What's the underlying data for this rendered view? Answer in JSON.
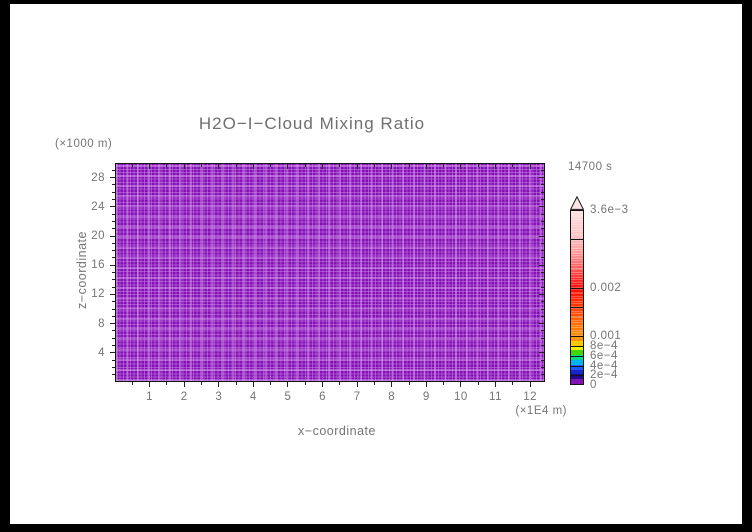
{
  "title": "H2O−I−Cloud Mixing Ratio",
  "annotations": {
    "time_label": "14700 s",
    "z_axis_unit": "(×1000 m)",
    "x_axis_unit": "(×1E4 m)"
  },
  "axes": {
    "xlabel": "x−coordinate",
    "ylabel": "z−coordinate"
  },
  "colors": {
    "frame": "#000000",
    "canvas": "#ffffff",
    "text": "#757575",
    "field_purple": "#8411b3",
    "mesh_line": "#ce92eb",
    "axis_tick": "#232323"
  },
  "chart_data": {
    "type": "heatmap",
    "title": "H2O−I−Cloud Mixing Ratio",
    "annotation_time": "14700 s",
    "x": {
      "label": "x−coordinate",
      "unit": "(×1E4 m)",
      "ticks": [
        1,
        2,
        3,
        4,
        5,
        6,
        7,
        8,
        9,
        10,
        11,
        12
      ],
      "minor_tick_step": 0.5,
      "range": [
        0,
        12.43
      ]
    },
    "z": {
      "label": "z−coordinate",
      "unit": "(×1000 m)",
      "ticks": [
        4,
        8,
        12,
        16,
        20,
        24,
        28
      ],
      "minor_tick_step": 1,
      "range": [
        0,
        30
      ]
    },
    "field": {
      "description": "uniform cloud mixing ratio ~0 across entire x–z domain; all cells rendered at lowest color level (purple) over a fine computational mesh",
      "uniform_value": 0
    },
    "grid": "mesh overlay on filled field",
    "colorbar_position": "right",
    "colorbar": {
      "range": [
        0,
        0.0036
      ],
      "over_arrow": true,
      "arrow_color": "#ffe6e6",
      "tick_labels": [
        {
          "value": 0.0036,
          "label": "3.6e−3"
        },
        {
          "value": 0.002,
          "label": "0.002"
        },
        {
          "value": 0.001,
          "label": "0.001"
        },
        {
          "value": 0.0008,
          "label": "8e−4"
        },
        {
          "value": 0.0006,
          "label": "6e−4"
        },
        {
          "value": 0.0004,
          "label": "4e−4"
        },
        {
          "value": 0.0002,
          "label": "2e−4"
        },
        {
          "value": 0,
          "label": "0"
        }
      ],
      "divider_values": [
        0.003,
        0.002,
        0.0016,
        0.001,
        0.0008,
        0.0006,
        0.0004,
        0.0002
      ],
      "band_step": 0.0001,
      "band_colors_bottom_to_top": [
        "#8411b3",
        "#1b0a8e",
        "#1527cd",
        "#1e5aff",
        "#00b4f0",
        "#00d88c",
        "#44d400",
        "#f0f000",
        "#ffc800",
        "#ff9600",
        "#ff8a00",
        "#ff7c00",
        "#ff6e00",
        "#ff6000",
        "#ff5200",
        "#ff4400",
        "#ff3600",
        "#ff2800",
        "#ff1a00",
        "#ff0c00",
        "#ff1414",
        "#ff2828",
        "#ff3c3c",
        "#ff5050",
        "#ff6464",
        "#ff7878",
        "#ff8c8c",
        "#ff9b9b",
        "#ffa8a8",
        "#ffb4b4",
        "#ffc0c0",
        "#ffc6c6",
        "#ffcccc",
        "#ffd2d2",
        "#ffd8d8",
        "#ffdede"
      ]
    }
  }
}
